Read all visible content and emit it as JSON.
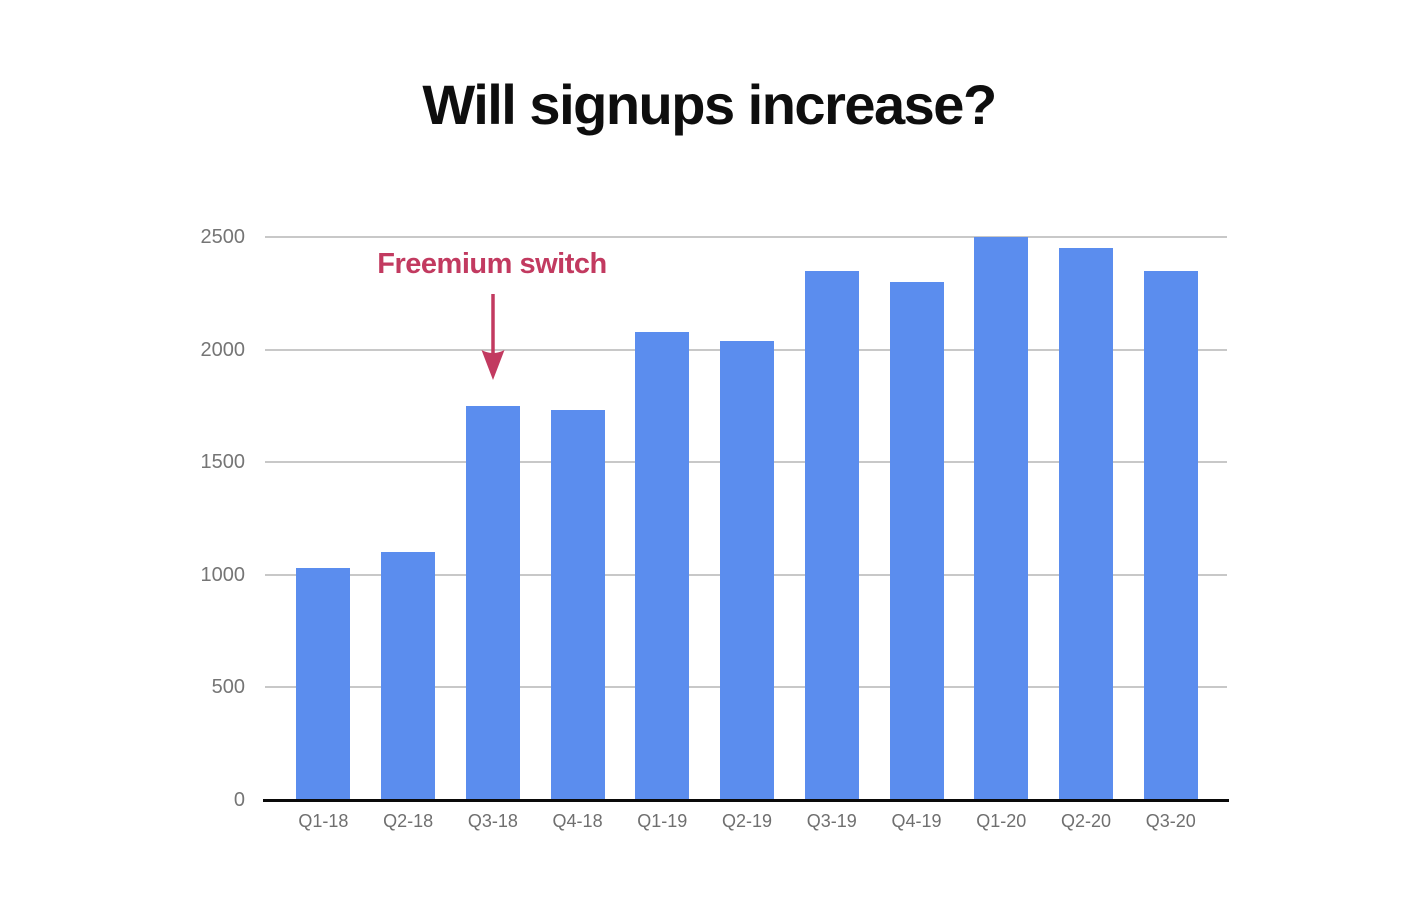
{
  "chart_data": {
    "type": "bar",
    "title": "Will signups increase?",
    "categories": [
      "Q1-18",
      "Q2-18",
      "Q3-18",
      "Q4-18",
      "Q1-19",
      "Q2-19",
      "Q3-19",
      "Q4-19",
      "Q1-20",
      "Q2-20",
      "Q3-20"
    ],
    "values": [
      1030,
      1100,
      1750,
      1730,
      2080,
      2040,
      2350,
      2300,
      2500,
      2450,
      2350
    ],
    "y_ticks": [
      0,
      500,
      1000,
      1500,
      2000,
      2500
    ],
    "ylim": [
      0,
      2500
    ],
    "xlabel": "",
    "ylabel": "",
    "grid": "horizontal",
    "legend": "none",
    "annotation": {
      "text": "Freemium switch",
      "target_category": "Q3-18",
      "arrow": "down"
    },
    "colors": {
      "bar": "#5B8DEE",
      "annotation": "#C23A60",
      "gridline": "#C8C8C8",
      "baseline": "#0A0A0A",
      "y_tick_label": "#757575",
      "x_tick_label": "#6F6F6F",
      "title": "#0E0E0E",
      "background": "#FFFFFF"
    }
  }
}
